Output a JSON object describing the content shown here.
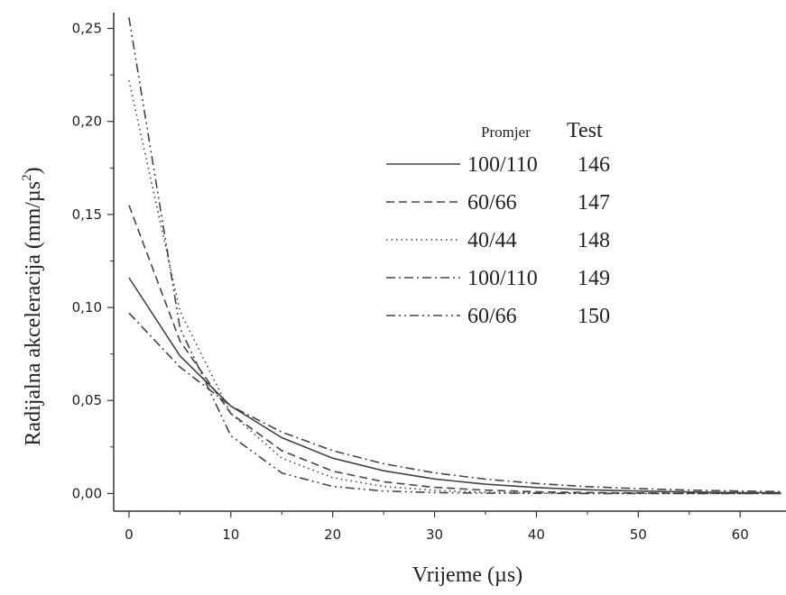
{
  "chart_data": {
    "type": "line",
    "xlabel": "Vrijeme (µs)",
    "ylabel_main": "Radijalna akceleracija  (mm/µs",
    "ylabel_sup": "2",
    "ylabel_close": ")",
    "xlim": [
      -1.5,
      64.5
    ],
    "ylim": [
      -0.0095,
      0.2585
    ],
    "x_ticks": [
      0,
      10,
      20,
      30,
      40,
      50,
      60
    ],
    "x_tick_labels": [
      "0",
      "10",
      "20",
      "30",
      "40",
      "50",
      "60"
    ],
    "y_ticks": [
      0.0,
      0.05,
      0.1,
      0.15,
      0.2,
      0.25
    ],
    "y_tick_labels": [
      "0,00",
      "0,05",
      "0,10",
      "0,15",
      "0,20",
      "0,25"
    ],
    "grid": false,
    "legend": {
      "placement": "upper-right",
      "header_promjer": "Promjer",
      "header_test": "Test"
    },
    "series": [
      {
        "promjer": "100/110",
        "test": "146",
        "style": "solid",
        "x": [
          0,
          5,
          10,
          15,
          20,
          25,
          30,
          35,
          40,
          45,
          50,
          55,
          60,
          64
        ],
        "y": [
          0.116,
          0.074,
          0.047,
          0.03,
          0.019,
          0.0122,
          0.0078,
          0.005,
          0.0032,
          0.002,
          0.0013,
          0.0008,
          0.0005,
          0.0004
        ]
      },
      {
        "promjer": "60/66",
        "test": "147",
        "style": "dash",
        "x": [
          0,
          5,
          10,
          15,
          20,
          25,
          30,
          35,
          40,
          45,
          50,
          55,
          60,
          64
        ],
        "y": [
          0.155,
          0.082,
          0.043,
          0.023,
          0.012,
          0.0063,
          0.0033,
          0.0018,
          0.0009,
          0.0005,
          0.0003,
          0.0001,
          0.0001,
          0.0
        ]
      },
      {
        "promjer": "40/44",
        "test": "148",
        "style": "dot",
        "x": [
          0,
          5,
          10,
          15,
          20,
          25,
          30,
          35,
          40,
          45,
          50,
          55,
          60,
          64
        ],
        "y": [
          0.222,
          0.098,
          0.043,
          0.019,
          0.0085,
          0.0038,
          0.0017,
          0.0007,
          0.0003,
          0.0001,
          0.0001,
          0.0,
          0.0,
          0.0
        ]
      },
      {
        "promjer": "100/110",
        "test": "149",
        "style": "dashdot",
        "x": [
          0,
          5,
          10,
          15,
          20,
          25,
          30,
          35,
          40,
          45,
          50,
          55,
          60,
          64
        ],
        "y": [
          0.097,
          0.068,
          0.047,
          0.033,
          0.023,
          0.016,
          0.0111,
          0.0077,
          0.0054,
          0.0037,
          0.0026,
          0.0018,
          0.0013,
          0.001
        ]
      },
      {
        "promjer": "60/66",
        "test": "150",
        "style": "dashdotdot",
        "x": [
          0,
          5,
          10,
          15,
          20,
          25,
          30,
          35,
          40,
          45,
          50,
          55,
          60,
          64
        ],
        "y": [
          0.256,
          0.089,
          0.031,
          0.011,
          0.0038,
          0.0013,
          0.0005,
          0.0002,
          0.0001,
          0.0,
          0.0,
          0.0,
          0.0,
          0.0
        ]
      }
    ]
  }
}
